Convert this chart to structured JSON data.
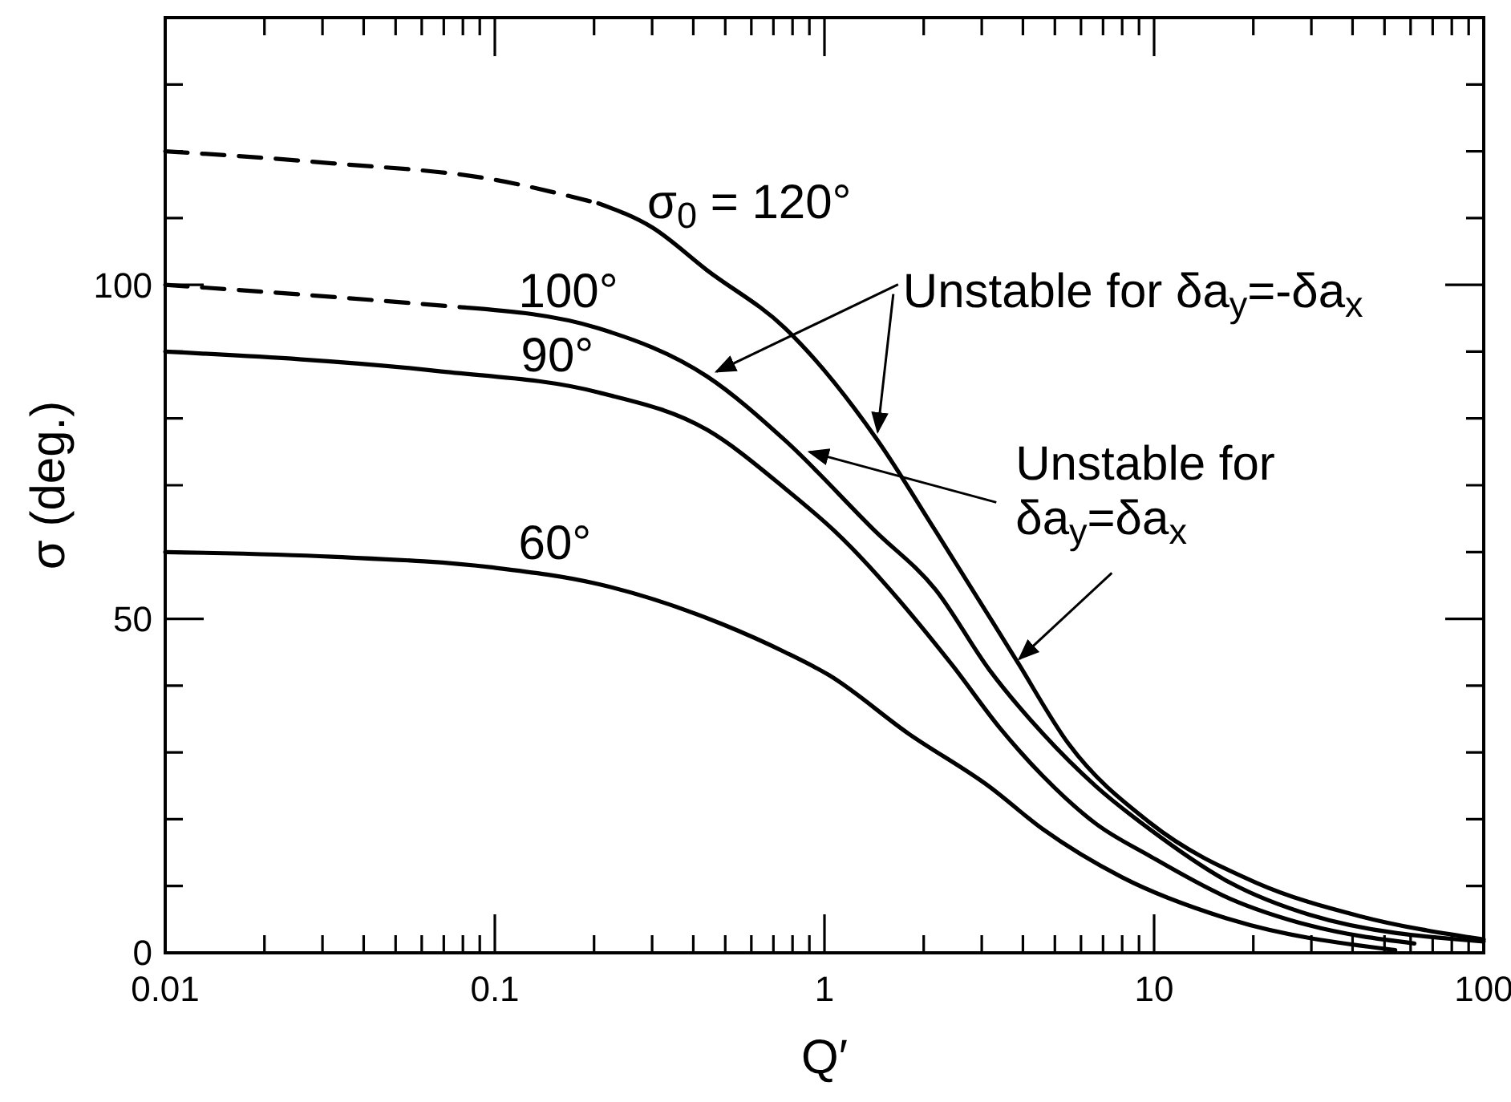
{
  "chart_data": {
    "type": "line",
    "xlabel": "Q′",
    "ylabel": "σ (deg.)",
    "log": "x",
    "grid": false,
    "xlim": [
      0.01,
      100
    ],
    "ylim": [
      0,
      140
    ],
    "xticks": [
      0.01,
      {
        "value": 0.02,
        "label": null
      },
      {
        "value": 0.03,
        "label": null
      },
      {
        "value": 0.04,
        "label": null
      },
      {
        "value": 0.05,
        "label": null
      },
      {
        "value": 0.06,
        "label": null
      },
      {
        "value": 0.07,
        "label": null
      },
      {
        "value": 0.08,
        "label": null
      },
      {
        "value": 0.09,
        "label": null
      },
      0.1,
      {
        "value": 0.2,
        "label": null
      },
      {
        "value": 0.3,
        "label": null
      },
      {
        "value": 0.4,
        "label": null
      },
      {
        "value": 0.5,
        "label": null
      },
      {
        "value": 0.6,
        "label": null
      },
      {
        "value": 0.7,
        "label": null
      },
      {
        "value": 0.8,
        "label": null
      },
      {
        "value": 0.9,
        "label": null
      },
      1,
      {
        "value": 2,
        "label": null
      },
      {
        "value": 3,
        "label": null
      },
      {
        "value": 4,
        "label": null
      },
      {
        "value": 5,
        "label": null
      },
      {
        "value": 6,
        "label": null
      },
      {
        "value": 7,
        "label": null
      },
      {
        "value": 8,
        "label": null
      },
      {
        "value": 9,
        "label": null
      },
      10,
      {
        "value": 20,
        "label": null
      },
      {
        "value": 30,
        "label": null
      },
      {
        "value": 40,
        "label": null
      },
      {
        "value": 50,
        "label": null
      },
      {
        "value": 60,
        "label": null
      },
      {
        "value": 70,
        "label": null
      },
      {
        "value": 80,
        "label": null
      },
      {
        "value": 90,
        "label": null
      },
      100
    ],
    "yticks": [
      0,
      {
        "value": 10,
        "label": null
      },
      {
        "value": 20,
        "label": null
      },
      {
        "value": 30,
        "label": null
      },
      {
        "value": 40,
        "label": null
      },
      50,
      {
        "value": 60,
        "label": null
      },
      {
        "value": 70,
        "label": null
      },
      {
        "value": 80,
        "label": null
      },
      {
        "value": 90,
        "label": null
      },
      100,
      {
        "value": 110,
        "label": null
      },
      {
        "value": 120,
        "label": null
      },
      {
        "value": 130,
        "label": null
      },
      {
        "value": 140,
        "label": null
      }
    ],
    "series": [
      {
        "color": "#000000",
        "line_style": "dashed",
        "x": [
          0.01,
          0.032,
          0.098,
          0.206
        ],
        "values": [
          120,
          118.2,
          115.8,
          112.2
        ]
      },
      {
        "color": "#000000",
        "line_style": "solid",
        "x": [
          0.206,
          0.3,
          0.44,
          0.76,
          1.45,
          2.17,
          3.8,
          5.5,
          9.7,
          20.4,
          42,
          100
        ],
        "values": [
          112.2,
          108.6,
          102.2,
          93.5,
          76.7,
          63.2,
          44,
          31.3,
          19.5,
          10.5,
          5.5,
          2
        ]
      },
      {
        "color": "#000000",
        "line_style": "dashed",
        "x": [
          0.01,
          0.032,
          0.081
        ],
        "values": [
          100,
          98.2,
          96.6
        ]
      },
      {
        "color": "#000000",
        "line_style": "solid",
        "x": [
          0.081,
          0.206,
          0.44,
          0.76,
          1.42,
          2.17,
          3.16,
          4.6,
          6.67,
          9.7,
          17,
          29.6,
          100
        ],
        "values": [
          96.6,
          93.5,
          86.3,
          76.7,
          63.2,
          54.4,
          42.4,
          32.8,
          24.9,
          18.5,
          10.5,
          5.7,
          1.7
        ]
      },
      {
        "color": "#000000",
        "line_style": "solid",
        "x": [
          0.01,
          0.067,
          0.206,
          0.44,
          0.76,
          1.07,
          2.43,
          3.4,
          4.59,
          6.67,
          9.7,
          17,
          29.6,
          61.6
        ],
        "values": [
          90,
          87.1,
          83.9,
          78.3,
          69.5,
          63.2,
          43.2,
          33.7,
          26.5,
          19.3,
          14.5,
          8.1,
          4.1,
          1.4
        ]
      },
      {
        "color": "#000000",
        "line_style": "solid",
        "x": [
          0.01,
          0.032,
          0.098,
          0.206,
          0.49,
          0.76,
          1.03,
          1.8,
          3.16,
          4.6,
          8,
          17,
          53.9
        ],
        "values": [
          60,
          59.3,
          57.7,
          55.2,
          49.2,
          45,
          41.6,
          32.8,
          24.9,
          18.5,
          11.3,
          5.0,
          0.4
        ]
      }
    ],
    "annotations": [
      "σ$_{0}$ = 120°",
      "100°",
      "90°",
      "60°",
      {
        "text": "Unstable for δa$_{y}$=-δa$_{x}$",
        "x": 0.47,
        "y": 87
      },
      {
        "text": "Unstable for\nδa$_{y}$=δa$_{x}$",
        "x": 0.9,
        "y": 75
      }
    ]
  }
}
